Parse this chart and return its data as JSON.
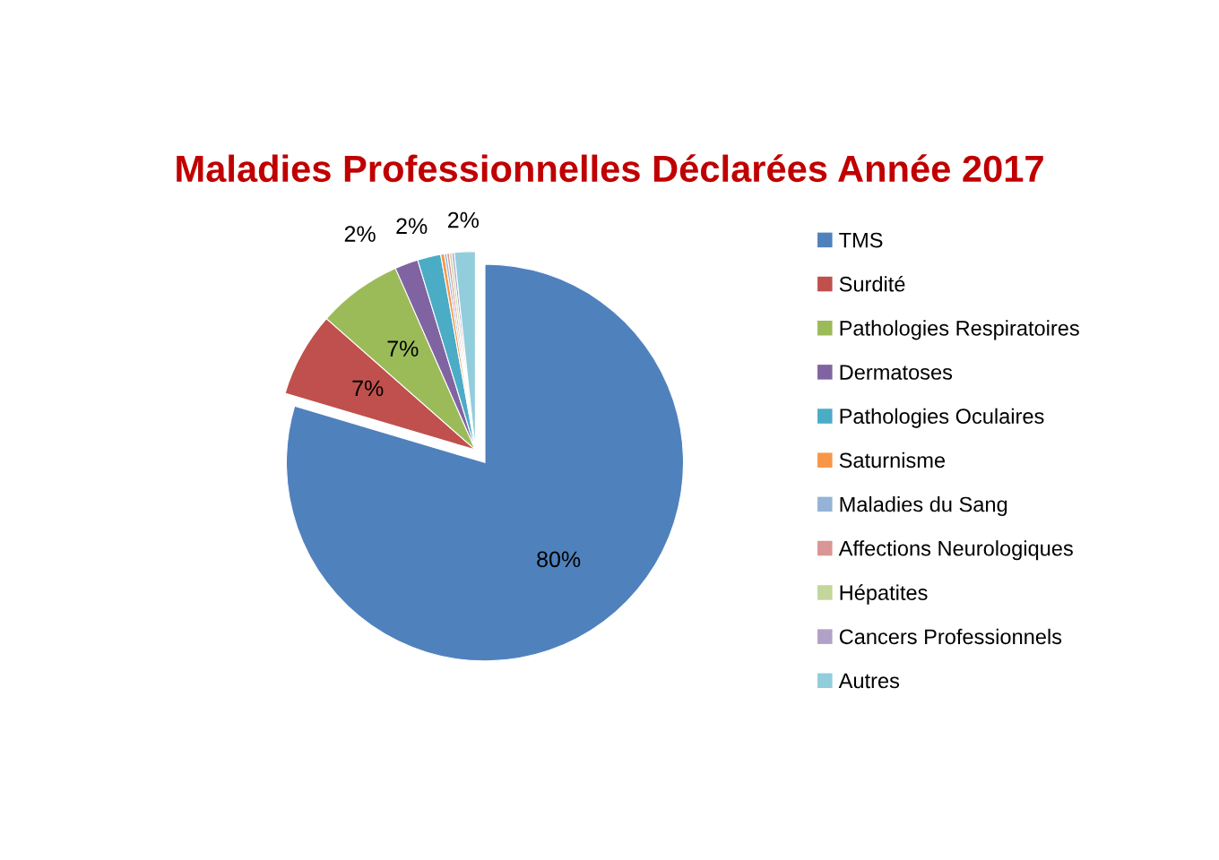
{
  "chart_data": {
    "type": "pie",
    "title": "Maladies Professionnelles Déclarées Année 2017",
    "categories": [
      "TMS",
      "Surdité",
      "Pathologies Respiratoires",
      "Dermatoses",
      "Pathologies Oculaires",
      "Saturnisme",
      "Maladies du Sang",
      "Affections Neurologiques",
      "Hépatites",
      "Cancers Professionnels",
      "Autres"
    ],
    "values": [
      79.6,
      6.9,
      6.9,
      1.9,
      1.9,
      0.3,
      0.2,
      0.2,
      0.2,
      0.2,
      1.7
    ],
    "colors": [
      "#4f81bd",
      "#c0504d",
      "#9bbb59",
      "#8064a2",
      "#4bacc6",
      "#f79646",
      "#95b3d7",
      "#d99694",
      "#c3d69b",
      "#b2a1c7",
      "#92cddc"
    ],
    "value_labels": [
      "80%",
      "7%",
      "7%",
      "2%",
      "2%",
      null,
      null,
      null,
      null,
      null,
      "2%"
    ],
    "legend": "right"
  }
}
